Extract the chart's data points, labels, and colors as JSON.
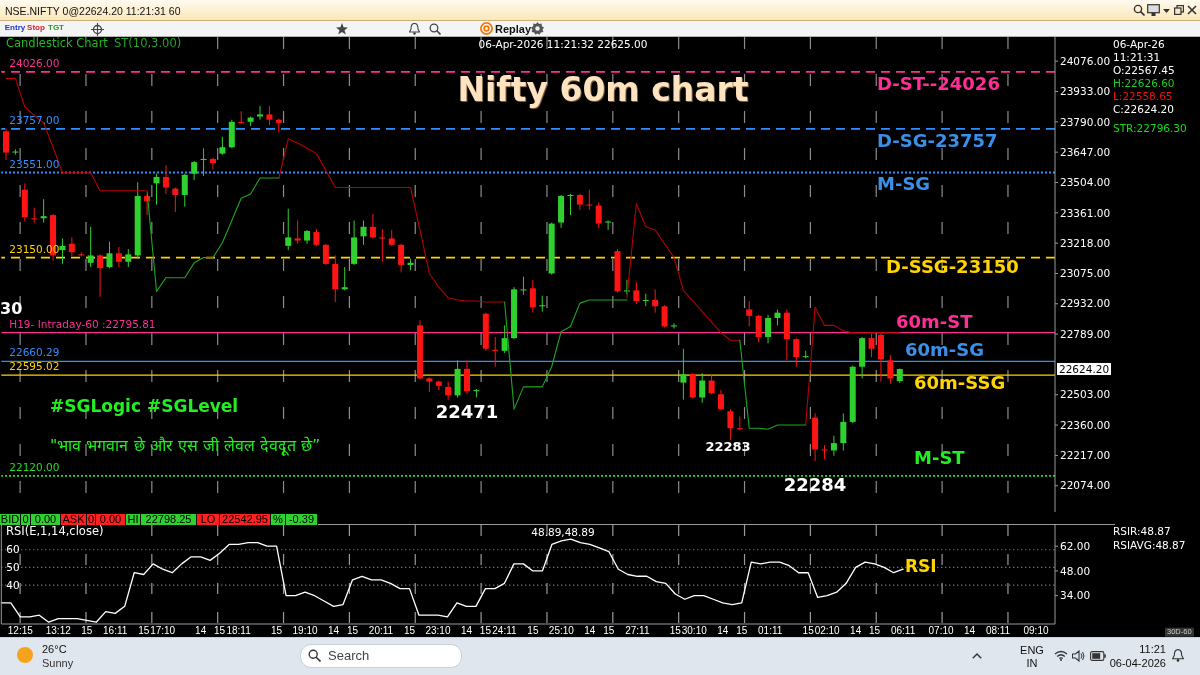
{
  "chart_data": [
    {
      "type": "candlestick",
      "title": "Nifty 60m chart",
      "subtitle": "Candlestick Chart",
      "categories": [
        null,
        null,
        null,
        null,
        null,
        null,
        null,
        null,
        null,
        null,
        null,
        null,
        null,
        null,
        null,
        null,
        null,
        null,
        null,
        null,
        null,
        null,
        null,
        null,
        null,
        null,
        null,
        null,
        null,
        null,
        null,
        null,
        null,
        null,
        null,
        null,
        null,
        null,
        null,
        null,
        null,
        null,
        null,
        null,
        null,
        null,
        null,
        null,
        null,
        null,
        null,
        null,
        null,
        null,
        null,
        null,
        null,
        null,
        null,
        null,
        null,
        null,
        null,
        null,
        null,
        null,
        null,
        null,
        null,
        null,
        null,
        null,
        null,
        null,
        null,
        null,
        null,
        null,
        null,
        null,
        null,
        null,
        null,
        null,
        null,
        null,
        null,
        null,
        null,
        null,
        null,
        null,
        null,
        null,
        null,
        null,
        null,
        null,
        null,
        null,
        null,
        null,
        null,
        null,
        null,
        null,
        null,
        null,
        null,
        null,
        null,
        null
      ],
      "ohlc": [
        [
          23745,
          23760,
          23610,
          23645
        ],
        [
          23645,
          23660,
          23635,
          23650
        ],
        [
          23470,
          23500,
          23320,
          23340
        ],
        [
          23335,
          23385,
          23315,
          23330
        ],
        [
          23335,
          23425,
          23315,
          23345
        ],
        [
          23350,
          23355,
          23135,
          23160
        ],
        [
          23185,
          23240,
          23120,
          23205
        ],
        [
          23215,
          23245,
          23155,
          23175
        ],
        [
          23165,
          23175,
          23155,
          23160
        ],
        [
          23125,
          23295,
          23105,
          23160
        ],
        [
          23160,
          23165,
          22965,
          23100
        ],
        [
          23105,
          23225,
          23100,
          23170
        ],
        [
          23170,
          23200,
          23105,
          23130
        ],
        [
          23130,
          23190,
          23105,
          23165
        ],
        [
          23160,
          23505,
          23145,
          23440
        ],
        [
          23440,
          23450,
          23350,
          23415
        ],
        [
          23500,
          23545,
          23400,
          23530
        ],
        [
          23530,
          23585,
          23450,
          23480
        ],
        [
          23475,
          23480,
          23365,
          23445
        ],
        [
          23445,
          23545,
          23390,
          23540
        ],
        [
          23545,
          23605,
          23515,
          23600
        ],
        [
          23610,
          23665,
          23535,
          23615
        ],
        [
          23615,
          23620,
          23565,
          23595
        ],
        [
          23640,
          23720,
          23635,
          23670
        ],
        [
          23670,
          23800,
          23665,
          23790
        ],
        [
          23790,
          23840,
          23780,
          23785
        ],
        [
          23790,
          23815,
          23770,
          23810
        ],
        [
          23815,
          23865,
          23800,
          23825
        ],
        [
          23825,
          23865,
          23775,
          23800
        ],
        [
          23800,
          23805,
          23740,
          23785
        ],
        [
          23205,
          23380,
          23185,
          23245
        ],
        [
          23240,
          23325,
          23215,
          23230
        ],
        [
          23230,
          23280,
          23215,
          23275
        ],
        [
          23270,
          23285,
          23205,
          23210
        ],
        [
          23210,
          23215,
          23115,
          23120
        ],
        [
          23120,
          23160,
          22940,
          23000
        ],
        [
          23000,
          23105,
          22995,
          23010
        ],
        [
          23120,
          23325,
          23115,
          23245
        ],
        [
          23250,
          23325,
          23210,
          23295
        ],
        [
          23295,
          23355,
          23240,
          23245
        ],
        [
          23245,
          23285,
          23130,
          23240
        ],
        [
          23240,
          23280,
          23205,
          23210
        ],
        [
          23210,
          23215,
          23080,
          23115
        ],
        [
          23115,
          23145,
          23090,
          23125
        ],
        [
          22830,
          22855,
          22575,
          22580
        ],
        [
          22580,
          22585,
          22515,
          22565
        ],
        [
          22565,
          22570,
          22525,
          22545
        ],
        [
          22540,
          22565,
          22480,
          22500
        ],
        [
          22500,
          22665,
          22490,
          22625
        ],
        [
          22625,
          22665,
          22505,
          22520
        ],
        [
          22520,
          22530,
          22490,
          22525
        ],
        [
          22885,
          22890,
          22710,
          22720
        ],
        [
          22715,
          22775,
          22635,
          22710
        ],
        [
          22710,
          22830,
          22700,
          22770
        ],
        [
          22770,
          23010,
          22765,
          23000
        ],
        [
          22995,
          23060,
          22975,
          23000
        ],
        [
          23005,
          23045,
          22890,
          22915
        ],
        [
          22920,
          22970,
          22895,
          22925
        ],
        [
          23075,
          23315,
          23070,
          23310
        ],
        [
          23315,
          23445,
          23290,
          23440
        ],
        [
          23440,
          23450,
          23350,
          23445
        ],
        [
          23445,
          23450,
          23375,
          23400
        ],
        [
          23400,
          23470,
          23375,
          23395
        ],
        [
          23395,
          23410,
          23290,
          23310
        ],
        [
          23315,
          23325,
          23280,
          23320
        ],
        [
          23180,
          23190,
          22985,
          22990
        ],
        [
          22990,
          23045,
          22975,
          22995
        ],
        [
          22995,
          23035,
          22930,
          22945
        ],
        [
          22945,
          22980,
          22920,
          22950
        ],
        [
          22950,
          23000,
          22890,
          22920
        ],
        [
          22920,
          22925,
          22820,
          22825
        ],
        [
          22825,
          22840,
          22815,
          22830
        ],
        [
          22560,
          22720,
          22480,
          22600
        ],
        [
          22600,
          22605,
          22485,
          22490
        ],
        [
          22490,
          22605,
          22465,
          22570
        ],
        [
          22570,
          22595,
          22505,
          22510
        ],
        [
          22505,
          22525,
          22430,
          22435
        ],
        [
          22425,
          22435,
          22290,
          22345
        ],
        [
          22345,
          22400,
          22335,
          22340
        ],
        [
          22905,
          22945,
          22825,
          22875
        ],
        [
          22875,
          22880,
          22750,
          22775
        ],
        [
          22775,
          22880,
          22745,
          22865
        ],
        [
          22865,
          22905,
          22830,
          22890
        ],
        [
          22890,
          22905,
          22665,
          22765
        ],
        [
          22765,
          22770,
          22635,
          22680
        ],
        [
          22680,
          22710,
          22675,
          22685
        ],
        [
          22395,
          22415,
          22190,
          22245
        ],
        [
          22245,
          22265,
          22200,
          22240
        ],
        [
          22240,
          22310,
          22215,
          22275
        ],
        [
          22275,
          22415,
          22240,
          22375
        ],
        [
          22375,
          22640,
          22370,
          22635
        ],
        [
          22635,
          22775,
          22580,
          22770
        ],
        [
          22770,
          22790,
          22680,
          22720
        ],
        [
          22785,
          22800,
          22565,
          22670
        ],
        [
          22665,
          22690,
          22555,
          22580
        ],
        [
          22567.45,
          22626.6,
          22558.65,
          22624.2
        ],
        null,
        null,
        null,
        null,
        null,
        null,
        null,
        null,
        null,
        null,
        null,
        null,
        null,
        null,
        null,
        null
      ],
      "series": [
        {
          "type": "line",
          "color": "#b80000",
          "values": [
            23995,
            23995,
            23860,
            23820,
            23785,
            23670,
            23550,
            23550,
            23550,
            23550,
            23465,
            23465,
            23465,
            23465,
            23465,
            23465,
            null,
            null,
            null,
            null,
            null,
            null,
            null,
            null,
            null,
            null,
            null,
            null,
            null,
            23525,
            23710,
            23690,
            23665,
            23640,
            23560,
            23480,
            23480,
            23480,
            23480,
            23480,
            23480,
            23480,
            23480,
            23480,
            23280,
            23075,
            23010,
            22960,
            22950,
            22945,
            22945,
            22940,
            22940,
            22940,
            null,
            null,
            null,
            null,
            null,
            null,
            null,
            null,
            null,
            null,
            null,
            null,
            22960,
            23405,
            23295,
            23280,
            23215,
            23150,
            22995,
            22945,
            22895,
            22845,
            22795,
            22760,
            22760,
            null,
            null,
            null,
            null,
            null,
            null,
            22360,
            22915,
            22830,
            22830,
            22805,
            22795,
            22795,
            22795,
            22795,
            22795,
            22795,
            null,
            null,
            null,
            null,
            null,
            null,
            null,
            null,
            null,
            null,
            null,
            null,
            null,
            null,
            null,
            null
          ]
        },
        {
          "type": "line",
          "name": "ST(10,3.00)",
          "color": "#1fa51f",
          "values": [
            null,
            null,
            null,
            null,
            null,
            null,
            null,
            null,
            null,
            null,
            null,
            null,
            null,
            null,
            null,
            23460,
            22990,
            23055,
            23055,
            23055,
            23125,
            23150,
            23150,
            23220,
            23325,
            23430,
            23450,
            23525,
            23525,
            23525,
            null,
            null,
            null,
            null,
            null,
            null,
            null,
            null,
            null,
            null,
            null,
            null,
            null,
            null,
            null,
            null,
            null,
            null,
            null,
            null,
            null,
            null,
            null,
            22940,
            22435,
            22540,
            22540,
            22540,
            22635,
            22800,
            22825,
            22935,
            22950,
            22950,
            22950,
            22950,
            22950,
            null,
            null,
            null,
            null,
            null,
            null,
            null,
            null,
            null,
            null,
            null,
            22760,
            22345,
            22345,
            22340,
            22360,
            22360,
            22360,
            22360,
            null,
            null,
            null,
            null,
            null,
            null,
            null,
            null,
            null,
            null,
            null,
            null,
            null,
            null,
            null,
            null,
            null,
            null,
            null,
            null,
            null,
            null,
            null,
            null,
            null,
            null
          ]
        }
      ],
      "ylim": [
        21950,
        24190
      ],
      "yticks": [
        {
          "value": 24076,
          "label": "24076.00"
        },
        {
          "value": 23933,
          "label": "23933.00"
        },
        {
          "value": 23790,
          "label": "23790.00"
        },
        {
          "value": 23647,
          "label": "23647.00"
        },
        {
          "value": 23504,
          "label": "23504.00"
        },
        {
          "value": 23361,
          "label": "23361.00"
        },
        {
          "value": 23218,
          "label": "23218.00"
        },
        {
          "value": 23075,
          "label": "23075.00"
        },
        {
          "value": 22932,
          "label": "22932.00"
        },
        {
          "value": 22789,
          "label": "22789.00"
        },
        {
          "value": 22503,
          "label": "22503.00"
        },
        {
          "value": 22360,
          "label": "22360.00"
        },
        {
          "value": 22217,
          "label": "22217.00"
        },
        {
          "value": 22074,
          "label": "22074.00"
        }
      ],
      "ref_lines": [
        {
          "axis": "y",
          "value": 24026,
          "label": "24026.00",
          "color": "#ff2e97",
          "line_style": "dashed"
        },
        {
          "axis": "y",
          "value": 23757,
          "label": "23757.00",
          "color": "#2f8fff",
          "line_style": "dashed"
        },
        {
          "axis": "y",
          "value": 23551,
          "label": "23551.00",
          "color": "#2f8fff",
          "line_style": "dotted"
        },
        {
          "axis": "y",
          "value": 23150,
          "label": "23150.00",
          "color": "#ffd400",
          "line_style": "dashed"
        },
        {
          "axis": "y",
          "value": 22795.81,
          "label": "H19- Intraday-60 :22795.81",
          "color": "#ff2e97",
          "line_style": "solid"
        },
        {
          "axis": "y",
          "value": 22660.29,
          "label": "22660.29",
          "color": "#2f8fff",
          "line_style": "solid"
        },
        {
          "axis": "y",
          "value": 22595.02,
          "label": "22595.02",
          "color": "#ffd400",
          "line_style": "solid"
        },
        {
          "axis": "y",
          "value": 22120,
          "label": "22120.00",
          "color": "#22dd22",
          "line_style": "dotted"
        }
      ],
      "grid": "x",
      "tick_labels": "y",
      "annotations": [
        "NSE.NIFTY 0@22624.20 11:21:31 60",
        "Entry",
        "Stop",
        "TGT",
        "Replay",
        "06-Apr-2026 11:21:32 22625.00",
        "06-Apr-26",
        "11:21:31",
        "O:22567.45",
        "H:22626.60",
        "L:22558.65",
        "C:22624.20",
        "STR:22796.30",
        "D-ST--24026",
        "D-SG-23757",
        "M-SG",
        "D-SSG-23150",
        "60m-ST",
        "60m-SG",
        "60m-SSG",
        "M-ST",
        "#SGLogic #SGLevel",
        "\"भाव भगवान छे और एस जी लेवल देवदूत छे”",
        "22471",
        "22283",
        "22284",
        "30",
        "22624.20",
        "BID",
        "0",
        "0.00",
        "ASK",
        "0",
        "0.00",
        "HI",
        "22798.25",
        "LO",
        "22542.95",
        "%",
        "-0.39"
      ]
    },
    {
      "type": "line",
      "categories": [
        null,
        null,
        "12:15",
        null,
        null,
        null,
        "13:12",
        null,
        null,
        "15",
        null,
        null,
        "16:11",
        null,
        null,
        "15",
        null,
        "17:10",
        null,
        null,
        null,
        "14",
        null,
        "15",
        null,
        "18:11",
        null,
        null,
        null,
        "15",
        null,
        null,
        "19:10",
        null,
        null,
        "14",
        null,
        "15",
        null,
        null,
        "20:11",
        null,
        null,
        "15",
        null,
        null,
        "23:10",
        null,
        null,
        "14",
        null,
        "15",
        null,
        "24:11",
        null,
        null,
        "15",
        null,
        null,
        "25:10",
        null,
        null,
        "14",
        null,
        "15",
        null,
        null,
        "27:11",
        null,
        null,
        null,
        "15",
        null,
        "30:10",
        null,
        null,
        "14",
        null,
        "15",
        null,
        null,
        "01:11",
        null,
        null,
        null,
        "15",
        null,
        "02:10",
        null,
        null,
        "14",
        null,
        "15",
        null,
        null,
        "06:11",
        null,
        null,
        null,
        "07:10",
        null,
        null,
        "14",
        null,
        null,
        "08:11",
        null,
        null,
        null,
        "09:10",
        null,
        null
      ],
      "series": [
        {
          "name": "RSI(E,1,14,close)",
          "color": "#ffffff",
          "values": [
            30,
            30,
            22,
            22,
            23,
            19,
            21,
            21,
            21,
            20,
            19,
            25,
            24,
            28,
            47,
            46,
            52,
            49,
            47,
            52,
            56,
            56,
            54,
            58,
            63,
            63,
            64,
            64,
            62,
            62,
            34,
            34,
            36,
            34,
            31,
            28,
            29,
            43,
            45,
            43,
            43,
            41,
            38,
            38,
            23,
            23,
            23,
            22,
            30,
            28,
            28,
            38,
            38,
            41,
            52,
            52,
            48,
            48,
            63,
            65,
            66,
            64,
            63,
            61,
            59,
            49,
            46,
            45,
            45,
            42,
            41,
            35,
            32,
            34,
            34,
            32,
            30,
            29,
            30,
            53,
            52,
            53,
            53,
            51,
            47,
            47,
            33,
            34,
            36,
            41,
            50,
            53,
            52,
            50,
            47,
            49,
            null,
            null,
            null,
            null,
            null,
            null,
            null,
            null,
            null,
            null,
            null,
            null,
            null,
            null,
            null,
            null
          ]
        }
      ],
      "ylim": [
        18,
        74
      ],
      "yticks": [
        40,
        50,
        60
      ],
      "y2lim": [
        18,
        74
      ],
      "y2ticks": [
        {
          "value": 34,
          "label": "34.00"
        },
        {
          "value": 48,
          "label": "48.00"
        },
        {
          "value": 62,
          "label": "62.00"
        }
      ],
      "grid": true,
      "annotations": [
        "48.89,48.89",
        "RSIR:48.87",
        "RSIAVG:48.87",
        "RSI",
        "30D-60",
        "26°C",
        "Sunny",
        "Search",
        "ENG",
        "IN",
        "11:21",
        "06-04-2026"
      ]
    }
  ]
}
